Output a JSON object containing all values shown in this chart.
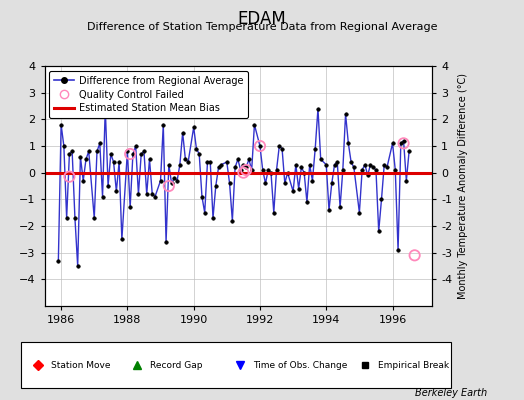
{
  "title": "EDAM",
  "subtitle": "Difference of Station Temperature Data from Regional Average",
  "ylabel_right": "Monthly Temperature Anomaly Difference (°C)",
  "xlim": [
    1985.5,
    1997.2
  ],
  "ylim": [
    -5,
    4
  ],
  "yticks": [
    -4,
    -3,
    -2,
    -1,
    0,
    1,
    2,
    3,
    4
  ],
  "xticks": [
    1986,
    1988,
    1990,
    1992,
    1994,
    1996
  ],
  "bias_line": 0.0,
  "background_color": "#e0e0e0",
  "plot_bg_color": "#ffffff",
  "line_color": "#3333cc",
  "bias_color": "#dd0000",
  "marker_color": "#000000",
  "qc_color": "#ff88bb",
  "watermark": "Berkeley Earth",
  "time_series": [
    1985.917,
    1986.0,
    1986.083,
    1986.167,
    1986.25,
    1986.333,
    1986.417,
    1986.5,
    1986.583,
    1986.667,
    1986.75,
    1986.833,
    1987.0,
    1987.083,
    1987.167,
    1987.25,
    1987.333,
    1987.417,
    1987.5,
    1987.583,
    1987.667,
    1987.75,
    1987.833,
    1988.0,
    1988.083,
    1988.167,
    1988.25,
    1988.333,
    1988.417,
    1988.5,
    1988.583,
    1988.667,
    1988.75,
    1988.833,
    1989.0,
    1989.083,
    1989.167,
    1989.25,
    1989.333,
    1989.417,
    1989.5,
    1989.583,
    1989.667,
    1989.75,
    1989.833,
    1990.0,
    1990.083,
    1990.167,
    1990.25,
    1990.333,
    1990.417,
    1990.5,
    1990.583,
    1990.667,
    1990.75,
    1990.833,
    1991.0,
    1991.083,
    1991.167,
    1991.25,
    1991.333,
    1991.417,
    1991.5,
    1991.583,
    1991.667,
    1991.75,
    1991.833,
    1992.0,
    1992.083,
    1992.167,
    1992.25,
    1992.333,
    1992.417,
    1992.5,
    1992.583,
    1992.667,
    1992.75,
    1992.833,
    1993.0,
    1993.083,
    1993.167,
    1993.25,
    1993.333,
    1993.417,
    1993.5,
    1993.583,
    1993.667,
    1993.75,
    1993.833,
    1994.0,
    1994.083,
    1994.167,
    1994.25,
    1994.333,
    1994.417,
    1994.5,
    1994.583,
    1994.667,
    1994.75,
    1994.833,
    1995.0,
    1995.083,
    1995.167,
    1995.25,
    1995.333,
    1995.417,
    1995.5,
    1995.583,
    1995.667,
    1995.75,
    1995.833,
    1996.0,
    1996.083,
    1996.167,
    1996.25,
    1996.333,
    1996.417,
    1996.5,
    1996.583,
    1996.667,
    1996.75,
    1996.833
  ],
  "values": [
    -3.3,
    1.8,
    1.0,
    -1.7,
    0.7,
    0.8,
    -1.7,
    -3.5,
    0.6,
    -0.3,
    0.5,
    0.8,
    -1.7,
    0.8,
    1.1,
    -0.9,
    2.4,
    -0.5,
    0.7,
    0.4,
    -0.7,
    0.4,
    -2.5,
    0.8,
    -1.3,
    0.7,
    1.0,
    -0.8,
    0.7,
    0.8,
    -0.8,
    0.5,
    -0.8,
    -0.9,
    -0.3,
    1.8,
    -2.6,
    0.3,
    -0.4,
    -0.2,
    -0.3,
    0.3,
    1.5,
    0.5,
    0.4,
    1.7,
    0.9,
    0.7,
    -0.9,
    -1.5,
    0.4,
    0.4,
    -1.7,
    -0.5,
    0.2,
    0.3,
    0.4,
    -0.4,
    -1.8,
    0.2,
    0.5,
    0.1,
    0.3,
    0.2,
    0.5,
    0.1,
    1.8,
    1.0,
    0.1,
    -0.4,
    0.1,
    0.0,
    -1.5,
    0.1,
    1.0,
    0.9,
    -0.4,
    0.0,
    -0.7,
    0.3,
    -0.6,
    0.2,
    0.0,
    -1.1,
    0.3,
    -0.3,
    0.9,
    2.4,
    0.5,
    0.3,
    -1.4,
    -0.4,
    0.3,
    0.4,
    -1.3,
    0.1,
    2.2,
    1.1,
    0.4,
    0.2,
    -1.5,
    0.1,
    0.3,
    -0.1,
    0.3,
    0.2,
    0.1,
    -2.2,
    -1.0,
    0.3,
    0.2,
    1.1,
    0.1,
    -2.9,
    1.1,
    1.2,
    -0.3,
    0.8
  ],
  "qc_failed_times": [
    1986.25,
    1988.083,
    1989.25,
    1991.5,
    1991.583,
    1992.0,
    1996.333,
    1996.667
  ],
  "qc_failed_values": [
    -0.15,
    0.7,
    -0.5,
    0.0,
    0.1,
    1.0,
    1.1,
    -3.1
  ]
}
